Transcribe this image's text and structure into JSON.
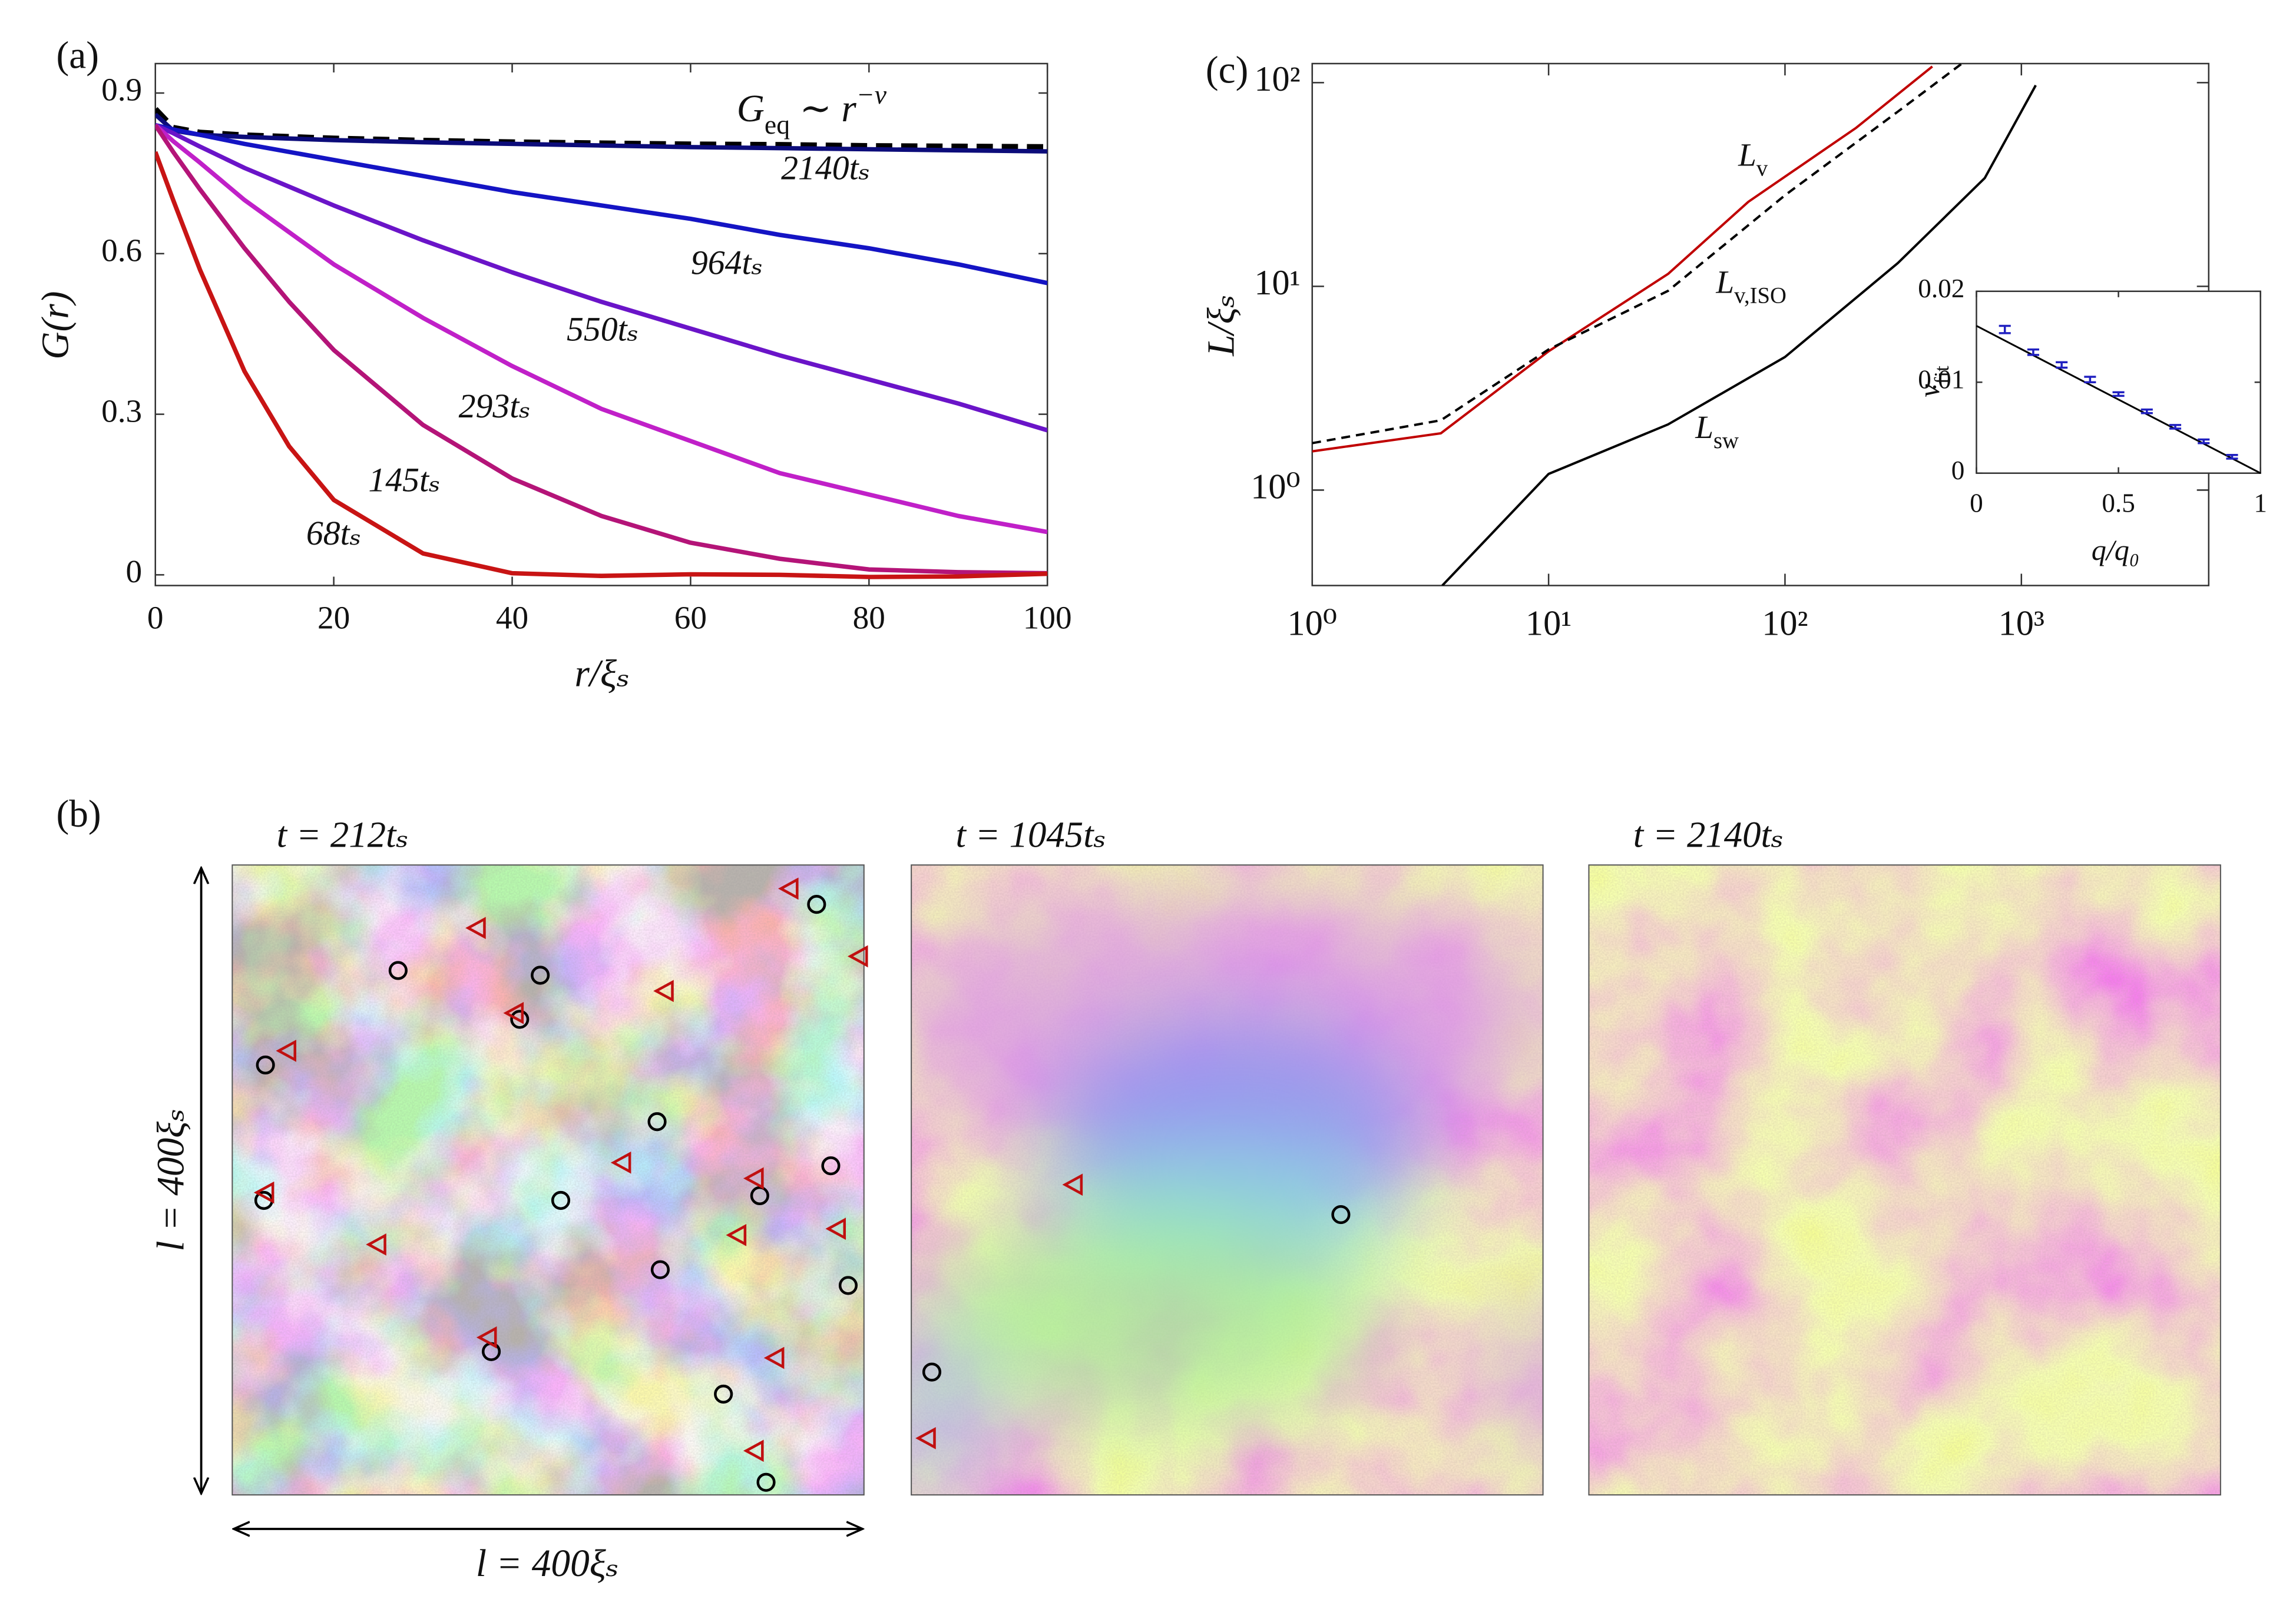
{
  "chart_data": [
    {
      "type": "line",
      "panel_label": "(a)",
      "xlabel": "r/ξₛ",
      "ylabel": "G(r)",
      "x": [
        0,
        2,
        5,
        10,
        15,
        20,
        30,
        40,
        50,
        60,
        70,
        80,
        90,
        100
      ],
      "xlim": [
        0,
        100
      ],
      "xticks": [
        0,
        20,
        40,
        60,
        80,
        100
      ],
      "ylim": [
        -0.02,
        0.955
      ],
      "yticks": [
        0,
        0.3,
        0.6,
        0.9
      ],
      "series": [
        {
          "name": "Geq ∼ r−ν",
          "color": "#000000",
          "linestyle": "dashed",
          "values": [
            0.87,
            0.835,
            0.826,
            0.821,
            0.818,
            0.815,
            0.811,
            0.808,
            0.806,
            0.804,
            0.803,
            0.801,
            0.8,
            0.799
          ]
        },
        {
          "name": "2140tₛ",
          "color": "#0c0c7a",
          "linestyle": "solid",
          "values": [
            0.86,
            0.83,
            0.822,
            0.818,
            0.815,
            0.812,
            0.808,
            0.805,
            0.802,
            0.799,
            0.797,
            0.795,
            0.793,
            0.791
          ]
        },
        {
          "name": "964tₛ",
          "color": "#1414c4",
          "linestyle": "solid",
          "values": [
            0.84,
            0.832,
            0.822,
            0.805,
            0.79,
            0.775,
            0.745,
            0.715,
            0.69,
            0.665,
            0.635,
            0.61,
            0.58,
            0.545
          ]
        },
        {
          "name": "550tₛ",
          "color": "#6a14c8",
          "linestyle": "solid",
          "values": [
            0.84,
            0.825,
            0.8,
            0.76,
            0.725,
            0.69,
            0.625,
            0.565,
            0.51,
            0.46,
            0.41,
            0.365,
            0.32,
            0.27
          ]
        },
        {
          "name": "293tₛ",
          "color": "#c020c8",
          "linestyle": "solid",
          "values": [
            0.84,
            0.81,
            0.77,
            0.7,
            0.64,
            0.58,
            0.48,
            0.39,
            0.31,
            0.25,
            0.19,
            0.15,
            0.11,
            0.08
          ]
        },
        {
          "name": "145tₛ",
          "color": "#b41478",
          "linestyle": "solid",
          "values": [
            0.84,
            0.79,
            0.72,
            0.61,
            0.51,
            0.42,
            0.28,
            0.18,
            0.11,
            0.06,
            0.03,
            0.01,
            0.005,
            0.003
          ]
        },
        {
          "name": "68tₛ",
          "color": "#c81414",
          "linestyle": "solid",
          "values": [
            0.79,
            0.7,
            0.57,
            0.38,
            0.24,
            0.14,
            0.04,
            0.003,
            -0.002,
            0.001,
            0,
            -0.004,
            -0.003,
            0.002
          ]
        }
      ]
    },
    {
      "type": "line",
      "panel_label": "(c)",
      "ylabel": "L/ξₛ",
      "xscale": "log",
      "yscale": "log",
      "xlim": [
        1,
        6200
      ],
      "ylim": [
        0.34,
        124
      ],
      "xticks": [
        {
          "value": 1,
          "label": "10⁰"
        },
        {
          "value": 10,
          "label": "10¹"
        },
        {
          "value": 100,
          "label": "10²"
        },
        {
          "value": 1000,
          "label": "10³"
        }
      ],
      "yticks": [
        {
          "value": 1,
          "label": "10⁰"
        },
        {
          "value": 10,
          "label": "10¹"
        },
        {
          "value": 100,
          "label": "10²"
        }
      ],
      "series": [
        {
          "name": "Lv",
          "color": "#c00000",
          "linestyle": "solid",
          "x": [
            1,
            3.5,
            10,
            32,
            70,
            200,
            420
          ],
          "values": [
            1.55,
            1.9,
            4.8,
            11.5,
            26,
            60,
            120
          ]
        },
        {
          "name": "Lv,ISO",
          "color": "#000000",
          "linestyle": "dashed",
          "x": [
            1,
            3.5,
            10,
            32,
            100,
            300,
            560
          ],
          "values": [
            1.7,
            2.2,
            4.9,
            9.5,
            28,
            72,
            124
          ]
        },
        {
          "name": "Lsw",
          "color": "#000000",
          "linestyle": "solid",
          "x": [
            3.55,
            10,
            32,
            100,
            300,
            700,
            1150
          ],
          "values": [
            0.34,
            1.2,
            2.1,
            4.5,
            13,
            34,
            97
          ]
        }
      ]
    },
    {
      "type": "errorbar",
      "xlabel": "q/q₀",
      "ylabel": "νfit",
      "xlim": [
        0,
        1
      ],
      "ylim": [
        0,
        0.02
      ],
      "xticks": [
        0,
        0.5,
        1
      ],
      "yticks": [
        0,
        0.01,
        0.02
      ],
      "color": "#2020c0",
      "x": [
        0.1,
        0.2,
        0.3,
        0.4,
        0.5,
        0.6,
        0.7,
        0.8,
        0.9
      ],
      "values": [
        0.0158,
        0.0133,
        0.0119,
        0.0103,
        0.0087,
        0.0068,
        0.0051,
        0.0035,
        0.0018
      ],
      "errors": [
        0.0004,
        0.0003,
        0.0003,
        0.0003,
        0.0002,
        0.0002,
        0.0002,
        0.0002,
        0.0002
      ],
      "fit": {
        "x": [
          0,
          1
        ],
        "values": [
          0.0162,
          0
        ],
        "color": "#000000"
      }
    }
  ],
  "panel_b": {
    "panel_label": "(b)",
    "axis_label": "l = 400ξₛ",
    "xlim": [
      0,
      400
    ],
    "ylim": [
      0,
      400
    ],
    "images": [
      {
        "title": "t = 212tₛ",
        "title_color": "#c8209a",
        "vortices": {
          "x": [
            370,
            105,
            195,
            182,
            21,
            269,
            379,
            334,
            20,
            208,
            271,
            390,
            164,
            311,
            338
          ],
          "y": [
            375,
            333,
            330,
            302,
            273,
            237,
            209,
            190,
            187,
            187,
            143,
            133,
            91,
            64,
            8
          ]
        },
        "antivortices": {
          "x": [
            353,
            155,
            397,
            274,
            179,
            35,
            247,
            331,
            21,
            320,
            383,
            92,
            162,
            344,
            331
          ],
          "y": [
            385,
            360,
            342,
            320,
            306,
            282,
            211,
            201,
            192,
            165,
            169,
            159,
            100,
            87,
            28
          ]
        }
      },
      {
        "title": "t = 1045tₛ",
        "title_color": "#8020c8",
        "vortices": {
          "x": [
            272,
            13
          ],
          "y": [
            178,
            78
          ]
        },
        "antivortices": {
          "x": [
            103,
            10
          ],
          "y": [
            197,
            36
          ]
        }
      },
      {
        "title": "t = 2140tₛ",
        "title_color": "#2424b0",
        "vortices": {
          "x": [],
          "y": []
        },
        "antivortices": {
          "x": [],
          "y": []
        }
      }
    ]
  }
}
